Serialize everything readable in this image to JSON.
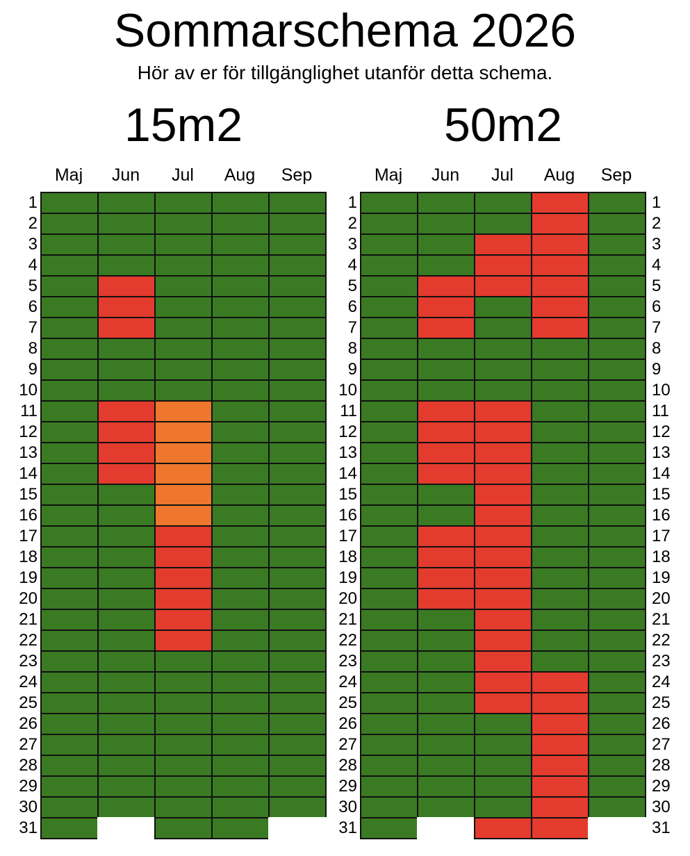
{
  "page": {
    "title": "Sommarschema 2026",
    "subtitle": "Hör av er för tillgänglighet utanför detta schema."
  },
  "colors": {
    "available": "#3a7a23",
    "booked": "#e33b2e",
    "partial": "#ee772d",
    "grid": "#111111"
  },
  "months": [
    "Maj",
    "Jun",
    "Jul",
    "Aug",
    "Sep"
  ],
  "days": [
    "1",
    "2",
    "3",
    "4",
    "5",
    "6",
    "7",
    "8",
    "9",
    "10",
    "11",
    "12",
    "13",
    "14",
    "15",
    "16",
    "17",
    "18",
    "19",
    "20",
    "21",
    "22",
    "23",
    "24",
    "25",
    "26",
    "27",
    "28",
    "29",
    "30",
    "31"
  ],
  "month_lengths": [
    31,
    30,
    31,
    31,
    30
  ],
  "schedules": [
    {
      "id": "15m2",
      "title": "15m2",
      "booked": {
        "Jun": [
          [
            5,
            7
          ],
          [
            11,
            14
          ]
        ],
        "Jul": [
          [
            17,
            22
          ]
        ]
      },
      "partial": {
        "Jul": [
          [
            11,
            16
          ]
        ]
      }
    },
    {
      "id": "50m2",
      "title": "50m2",
      "booked": {
        "Jun": [
          [
            5,
            7
          ],
          [
            11,
            14
          ],
          [
            17,
            20
          ]
        ],
        "Jul": [
          [
            3,
            5
          ],
          [
            11,
            25
          ],
          [
            31,
            31
          ]
        ],
        "Aug": [
          [
            1,
            7
          ],
          [
            24,
            31
          ]
        ]
      },
      "partial": {}
    }
  ]
}
